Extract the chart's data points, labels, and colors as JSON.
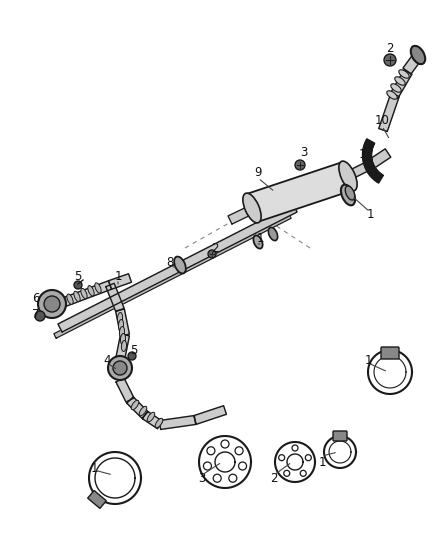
{
  "background_color": "#ffffff",
  "line_color": "#1a1a1a",
  "pipe_fill": "#d8d8d8",
  "pipe_fill_dark": "#b0b0b0",
  "fig_width": 4.38,
  "fig_height": 5.33,
  "dpi": 100
}
